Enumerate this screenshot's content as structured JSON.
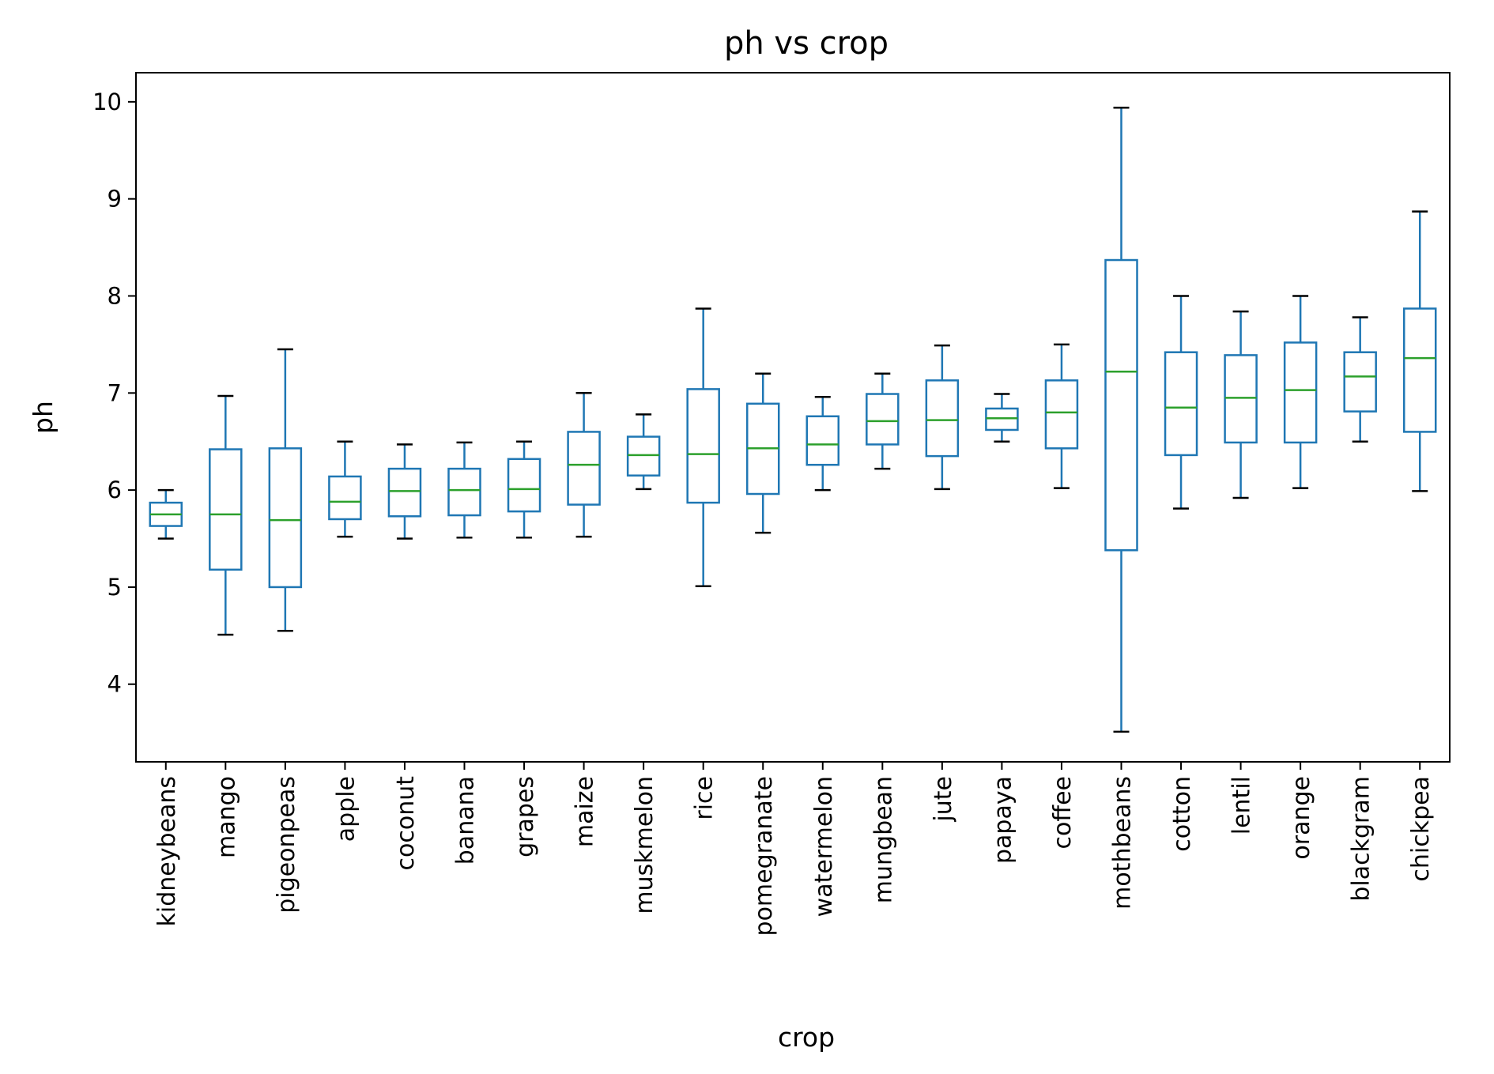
{
  "chart_data": {
    "type": "box",
    "title": "ph vs crop",
    "xlabel": "crop",
    "ylabel": "ph",
    "ylim": [
      3.2,
      10.3
    ],
    "yticks": [
      4,
      5,
      6,
      7,
      8,
      9,
      10
    ],
    "grid": false,
    "colors": {
      "box": "#1f77b4",
      "median": "#2ca02c",
      "cap": "#000000"
    },
    "categories": [
      "kidneybeans",
      "mango",
      "pigeonpeas",
      "apple",
      "coconut",
      "banana",
      "grapes",
      "maize",
      "muskmelon",
      "rice",
      "pomegranate",
      "watermelon",
      "mungbean",
      "jute",
      "papaya",
      "coffee",
      "mothbeans",
      "cotton",
      "lentil",
      "orange",
      "blackgram",
      "chickpea"
    ],
    "boxes": [
      {
        "whislo": 5.5,
        "q1": 5.63,
        "med": 5.75,
        "q3": 5.87,
        "whishi": 6.0
      },
      {
        "whislo": 4.51,
        "q1": 5.18,
        "med": 5.75,
        "q3": 6.42,
        "whishi": 6.97
      },
      {
        "whislo": 4.55,
        "q1": 5.0,
        "med": 5.69,
        "q3": 6.43,
        "whishi": 7.45
      },
      {
        "whislo": 5.52,
        "q1": 5.7,
        "med": 5.88,
        "q3": 6.14,
        "whishi": 6.5
      },
      {
        "whislo": 5.5,
        "q1": 5.73,
        "med": 5.99,
        "q3": 6.22,
        "whishi": 6.47
      },
      {
        "whislo": 5.51,
        "q1": 5.74,
        "med": 6.0,
        "q3": 6.22,
        "whishi": 6.49
      },
      {
        "whislo": 5.51,
        "q1": 5.78,
        "med": 6.01,
        "q3": 6.32,
        "whishi": 6.5
      },
      {
        "whislo": 5.52,
        "q1": 5.85,
        "med": 6.26,
        "q3": 6.6,
        "whishi": 7.0
      },
      {
        "whislo": 6.01,
        "q1": 6.15,
        "med": 6.36,
        "q3": 6.55,
        "whishi": 6.78
      },
      {
        "whislo": 5.01,
        "q1": 5.87,
        "med": 6.37,
        "q3": 7.04,
        "whishi": 7.87
      },
      {
        "whislo": 5.56,
        "q1": 5.96,
        "med": 6.43,
        "q3": 6.89,
        "whishi": 7.2
      },
      {
        "whislo": 6.0,
        "q1": 6.26,
        "med": 6.47,
        "q3": 6.76,
        "whishi": 6.96
      },
      {
        "whislo": 6.22,
        "q1": 6.47,
        "med": 6.71,
        "q3": 6.99,
        "whishi": 7.2
      },
      {
        "whislo": 6.01,
        "q1": 6.35,
        "med": 6.72,
        "q3": 7.13,
        "whishi": 7.49
      },
      {
        "whislo": 6.5,
        "q1": 6.62,
        "med": 6.74,
        "q3": 6.84,
        "whishi": 6.99
      },
      {
        "whislo": 6.02,
        "q1": 6.43,
        "med": 6.8,
        "q3": 7.13,
        "whishi": 7.5
      },
      {
        "whislo": 3.51,
        "q1": 5.38,
        "med": 7.22,
        "q3": 8.37,
        "whishi": 9.94
      },
      {
        "whislo": 5.81,
        "q1": 6.36,
        "med": 6.85,
        "q3": 7.42,
        "whishi": 8.0
      },
      {
        "whislo": 5.92,
        "q1": 6.49,
        "med": 6.95,
        "q3": 7.39,
        "whishi": 7.84
      },
      {
        "whislo": 6.02,
        "q1": 6.49,
        "med": 7.03,
        "q3": 7.52,
        "whishi": 8.0
      },
      {
        "whislo": 6.5,
        "q1": 6.81,
        "med": 7.17,
        "q3": 7.42,
        "whishi": 7.78
      },
      {
        "whislo": 5.99,
        "q1": 6.6,
        "med": 7.36,
        "q3": 7.87,
        "whishi": 8.87
      }
    ]
  }
}
